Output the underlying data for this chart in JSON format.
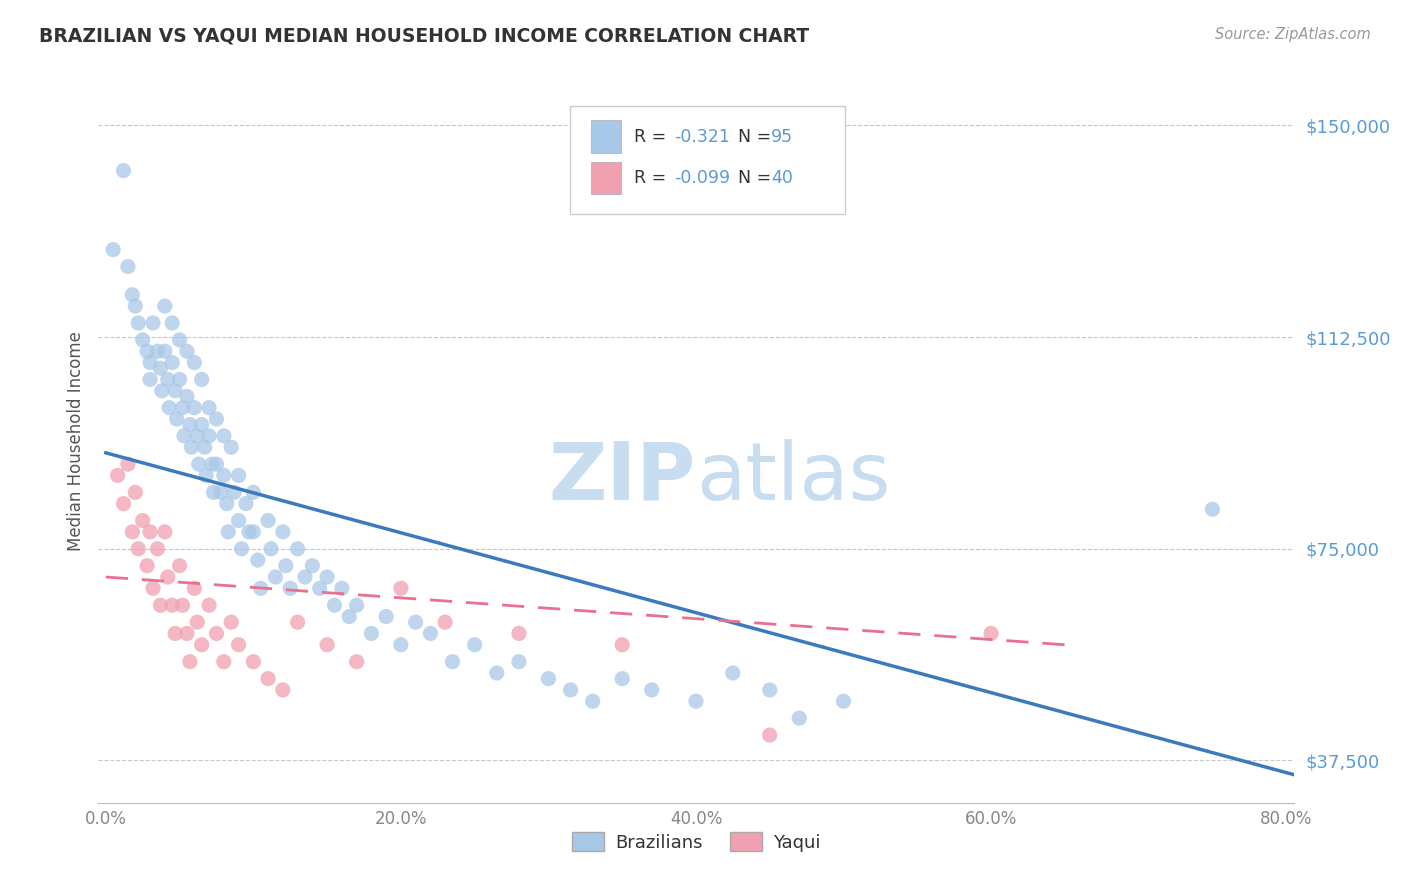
{
  "title": "BRAZILIAN VS YAQUI MEDIAN HOUSEHOLD INCOME CORRELATION CHART",
  "source_text": "Source: ZipAtlas.com",
  "ylabel": "Median Household Income",
  "xlim": [
    -0.005,
    0.805
  ],
  "ylim": [
    30000,
    158000
  ],
  "yticks": [
    37500,
    75000,
    112500,
    150000
  ],
  "ytick_labels": [
    "$37,500",
    "$75,000",
    "$112,500",
    "$150,000"
  ],
  "xticks": [
    0.0,
    0.2,
    0.4,
    0.6,
    0.8
  ],
  "xtick_labels": [
    "0.0%",
    "20.0%",
    "40.0%",
    "60.0%",
    "80.0%"
  ],
  "background_color": "#ffffff",
  "grid_color": "#c8c8c8",
  "title_color": "#333333",
  "axis_label_color": "#555555",
  "tick_label_color": "#5b9bd5",
  "brazilians_color": "#a8c8e8",
  "yaqui_color": "#f0a0b0",
  "trend_blue_color": "#3a7bbf",
  "trend_pink_color": "#e87090",
  "watermark_color": "#c8ddf0",
  "R_brazilian": -0.321,
  "N_brazilian": 95,
  "R_yaqui": -0.099,
  "N_yaqui": 40,
  "blue_trend_x": [
    0.0,
    0.805
  ],
  "blue_trend_y": [
    92000,
    35000
  ],
  "pink_trend_x": [
    0.0,
    0.65
  ],
  "pink_trend_y": [
    70000,
    58000
  ],
  "brazilian_scatter_x": [
    0.005,
    0.012,
    0.015,
    0.018,
    0.02,
    0.022,
    0.025,
    0.028,
    0.03,
    0.03,
    0.032,
    0.035,
    0.037,
    0.038,
    0.04,
    0.04,
    0.042,
    0.043,
    0.045,
    0.045,
    0.047,
    0.048,
    0.05,
    0.05,
    0.052,
    0.053,
    0.055,
    0.055,
    0.057,
    0.058,
    0.06,
    0.06,
    0.062,
    0.063,
    0.065,
    0.065,
    0.067,
    0.068,
    0.07,
    0.07,
    0.072,
    0.073,
    0.075,
    0.075,
    0.078,
    0.08,
    0.08,
    0.082,
    0.083,
    0.085,
    0.087,
    0.09,
    0.09,
    0.092,
    0.095,
    0.097,
    0.1,
    0.1,
    0.103,
    0.105,
    0.11,
    0.112,
    0.115,
    0.12,
    0.122,
    0.125,
    0.13,
    0.135,
    0.14,
    0.145,
    0.15,
    0.155,
    0.16,
    0.165,
    0.17,
    0.18,
    0.19,
    0.2,
    0.21,
    0.22,
    0.235,
    0.25,
    0.265,
    0.28,
    0.3,
    0.315,
    0.33,
    0.35,
    0.37,
    0.4,
    0.425,
    0.45,
    0.47,
    0.5,
    0.75
  ],
  "brazilian_scatter_y": [
    128000,
    142000,
    125000,
    120000,
    118000,
    115000,
    112000,
    110000,
    108000,
    105000,
    115000,
    110000,
    107000,
    103000,
    118000,
    110000,
    105000,
    100000,
    115000,
    108000,
    103000,
    98000,
    112000,
    105000,
    100000,
    95000,
    110000,
    102000,
    97000,
    93000,
    108000,
    100000,
    95000,
    90000,
    105000,
    97000,
    93000,
    88000,
    100000,
    95000,
    90000,
    85000,
    98000,
    90000,
    85000,
    95000,
    88000,
    83000,
    78000,
    93000,
    85000,
    88000,
    80000,
    75000,
    83000,
    78000,
    85000,
    78000,
    73000,
    68000,
    80000,
    75000,
    70000,
    78000,
    72000,
    68000,
    75000,
    70000,
    72000,
    68000,
    70000,
    65000,
    68000,
    63000,
    65000,
    60000,
    63000,
    58000,
    62000,
    60000,
    55000,
    58000,
    53000,
    55000,
    52000,
    50000,
    48000,
    52000,
    50000,
    48000,
    53000,
    50000,
    45000,
    48000,
    82000
  ],
  "yaqui_scatter_x": [
    0.008,
    0.012,
    0.015,
    0.018,
    0.02,
    0.022,
    0.025,
    0.028,
    0.03,
    0.032,
    0.035,
    0.037,
    0.04,
    0.042,
    0.045,
    0.047,
    0.05,
    0.052,
    0.055,
    0.057,
    0.06,
    0.062,
    0.065,
    0.07,
    0.075,
    0.08,
    0.085,
    0.09,
    0.1,
    0.11,
    0.12,
    0.13,
    0.15,
    0.17,
    0.2,
    0.23,
    0.28,
    0.35,
    0.45,
    0.6
  ],
  "yaqui_scatter_y": [
    88000,
    83000,
    90000,
    78000,
    85000,
    75000,
    80000,
    72000,
    78000,
    68000,
    75000,
    65000,
    78000,
    70000,
    65000,
    60000,
    72000,
    65000,
    60000,
    55000,
    68000,
    62000,
    58000,
    65000,
    60000,
    55000,
    62000,
    58000,
    55000,
    52000,
    50000,
    62000,
    58000,
    55000,
    68000,
    62000,
    60000,
    58000,
    42000,
    60000
  ]
}
